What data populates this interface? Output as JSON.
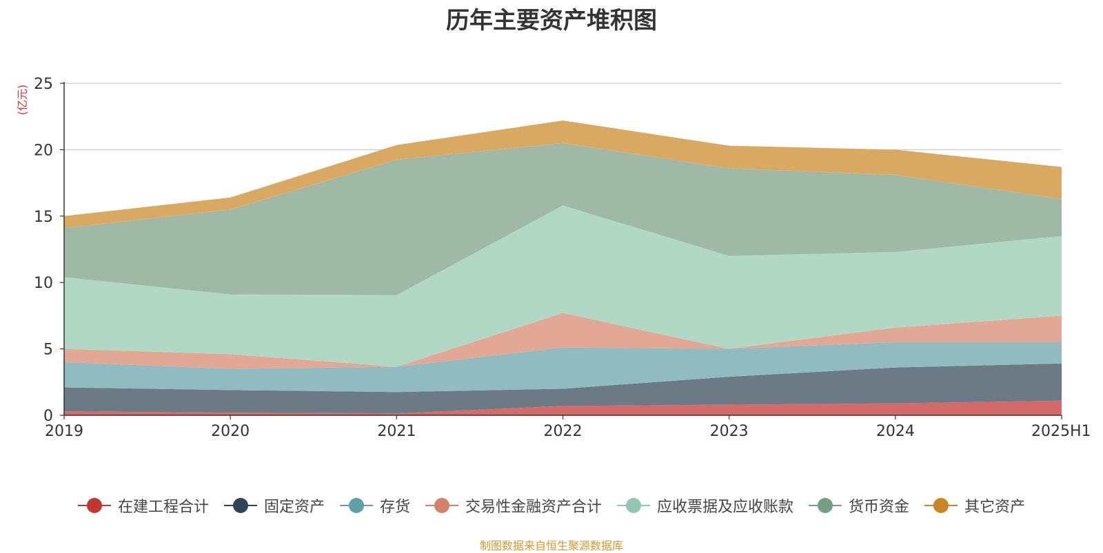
{
  "chart_data": {
    "type": "area",
    "stacked": true,
    "title": "历年主要资产堆积图",
    "ylabel": "(亿元)",
    "xlabel": "",
    "categories": [
      "2019",
      "2020",
      "2021",
      "2022",
      "2023",
      "2024",
      "2025H1"
    ],
    "ylim": [
      0,
      25
    ],
    "yticks": [
      0,
      5,
      10,
      15,
      20,
      25
    ],
    "grid": true,
    "legend_position": "bottom",
    "series": [
      {
        "name": "在建工程合计",
        "color": "#c23531",
        "fill": "#d46a6a",
        "values": [
          0.3,
          0.2,
          0.15,
          0.7,
          0.8,
          0.9,
          1.1
        ]
      },
      {
        "name": "固定资产",
        "color": "#2f4554",
        "fill": "#6c7a85",
        "values": [
          1.8,
          1.7,
          1.6,
          1.3,
          2.1,
          2.7,
          2.8
        ]
      },
      {
        "name": "存货",
        "color": "#61a0a8",
        "fill": "#90bbc0",
        "values": [
          1.9,
          1.6,
          1.9,
          3.1,
          2.1,
          1.9,
          1.6
        ]
      },
      {
        "name": "交易性金融资产合计",
        "color": "#d48265",
        "fill": "#e3a796",
        "values": [
          1.0,
          1.1,
          0.0,
          2.6,
          0.0,
          1.1,
          2.0
        ]
      },
      {
        "name": "应收票据及应收账款",
        "color": "#91c7ae",
        "fill": "#b1d7c5",
        "values": [
          5.4,
          4.5,
          5.4,
          8.1,
          7.0,
          5.7,
          6.0
        ]
      },
      {
        "name": "货币资金",
        "color": "#749f83",
        "fill": "#9fb9a6",
        "values": [
          3.7,
          6.4,
          10.2,
          4.7,
          6.6,
          5.8,
          2.8
        ]
      },
      {
        "name": "其它资产",
        "color": "#ca8622",
        "fill": "#d9a861",
        "values": [
          0.9,
          0.9,
          1.1,
          1.7,
          1.7,
          1.9,
          2.4
        ]
      }
    ]
  },
  "source_note": "制图数据来自恒生聚源数据库"
}
